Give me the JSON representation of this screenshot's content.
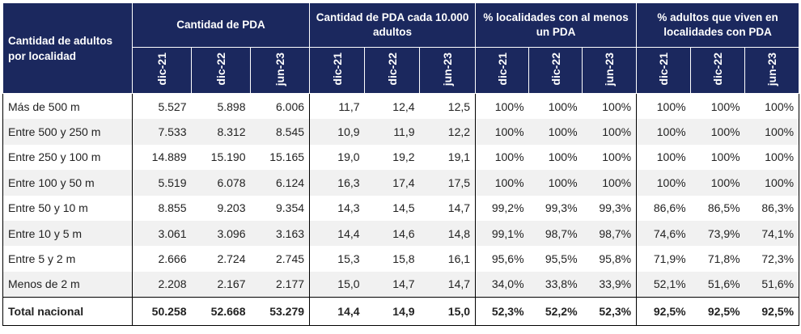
{
  "header": {
    "row_label": "Cantidad de adultos por localidad",
    "groups": [
      "Cantidad de PDA",
      "Cantidad de PDA cada 10.000 adultos",
      "% localidades con al menos un PDA",
      "% adultos que viven en localidades con PDA"
    ],
    "periods": [
      "dic-21",
      "dic-22",
      "jun-23"
    ]
  },
  "colors": {
    "header_bg": "#1b285e",
    "alt_row": "#f1f1f1"
  },
  "rows": [
    {
      "label": "Más de 500 m",
      "values": [
        "5.527",
        "5.898",
        "6.006",
        "11,7",
        "12,4",
        "12,5",
        "100%",
        "100%",
        "100%",
        "100%",
        "100%",
        "100%"
      ]
    },
    {
      "label": "Entre 500 y 250 m",
      "values": [
        "7.533",
        "8.312",
        "8.545",
        "10,9",
        "11,9",
        "12,2",
        "100%",
        "100%",
        "100%",
        "100%",
        "100%",
        "100%"
      ]
    },
    {
      "label": "Entre 250 y 100 m",
      "values": [
        "14.889",
        "15.190",
        "15.165",
        "19,0",
        "19,2",
        "19,1",
        "100%",
        "100%",
        "100%",
        "100%",
        "100%",
        "100%"
      ]
    },
    {
      "label": "Entre 100 y 50 m",
      "values": [
        "5.519",
        "6.078",
        "6.124",
        "16,3",
        "17,4",
        "17,5",
        "100%",
        "100%",
        "100%",
        "100%",
        "100%",
        "100%"
      ]
    },
    {
      "label": "Entre 50 y 10 m",
      "values": [
        "8.855",
        "9.203",
        "9.354",
        "14,3",
        "14,5",
        "14,7",
        "99,2%",
        "99,3%",
        "99,3%",
        "86,6%",
        "86,5%",
        "86,3%"
      ]
    },
    {
      "label": "Entre 10 y 5 m",
      "values": [
        "3.061",
        "3.096",
        "3.163",
        "14,4",
        "14,6",
        "14,8",
        "99,1%",
        "98,7%",
        "98,7%",
        "74,6%",
        "73,9%",
        "74,1%"
      ]
    },
    {
      "label": "Entre 5 y 2 m",
      "values": [
        "2.666",
        "2.724",
        "2.745",
        "15,3",
        "15,8",
        "16,1",
        "95,6%",
        "95,5%",
        "95,8%",
        "71,9%",
        "71,8%",
        "72,3%"
      ]
    },
    {
      "label": "Menos de 2 m",
      "values": [
        "2.208",
        "2.167",
        "2.177",
        "15,0",
        "14,7",
        "14,7",
        "34,0%",
        "33,8%",
        "33,9%",
        "52,1%",
        "51,6%",
        "51,6%"
      ]
    }
  ],
  "total": {
    "label": "Total nacional",
    "values": [
      "50.258",
      "52.668",
      "53.279",
      "14,4",
      "14,9",
      "15,0",
      "52,3%",
      "52,2%",
      "52,3%",
      "92,5%",
      "92,5%",
      "92,5%"
    ]
  }
}
